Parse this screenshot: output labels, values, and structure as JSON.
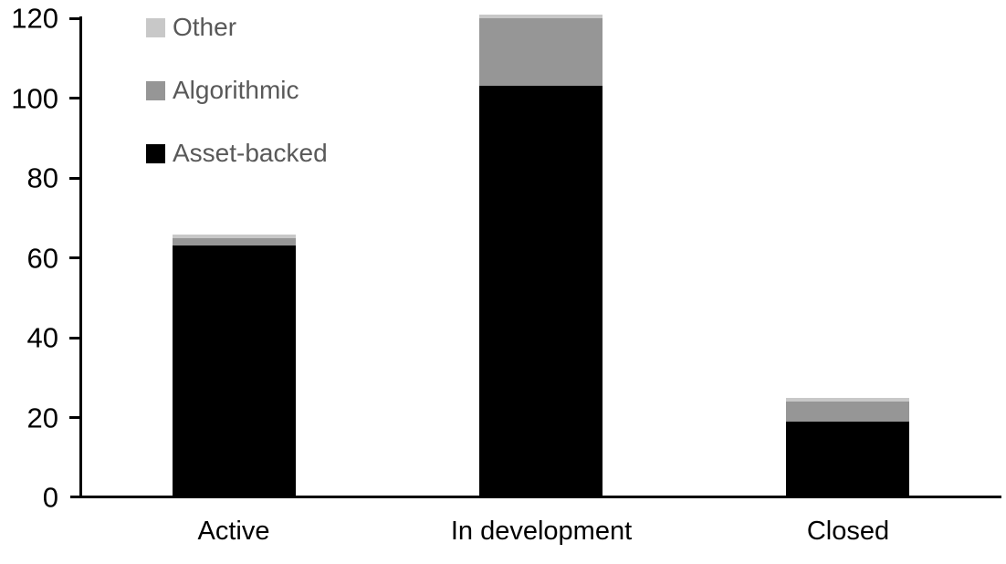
{
  "chart_data": {
    "type": "bar",
    "stacked": true,
    "title": "",
    "xlabel": "",
    "ylabel": "",
    "categories": [
      "Active",
      "In development",
      "Closed"
    ],
    "series": [
      {
        "name": "Asset-backed",
        "color": "#000000",
        "values": [
          63,
          103,
          19
        ]
      },
      {
        "name": "Algorithmic",
        "color": "#969696",
        "values": [
          2,
          17,
          5
        ]
      },
      {
        "name": "Other",
        "color": "#c8c8c8",
        "values": [
          1,
          1,
          1
        ]
      }
    ],
    "totals": [
      66,
      121,
      25
    ],
    "ylim": [
      0,
      120
    ],
    "yticks": [
      0,
      20,
      40,
      60,
      80,
      100,
      120
    ],
    "grid": false,
    "legend_position": "top-left",
    "legend_order": [
      "Other",
      "Algorithmic",
      "Asset-backed"
    ],
    "legend_text_color": "#595959",
    "axis_color": "#000000"
  }
}
